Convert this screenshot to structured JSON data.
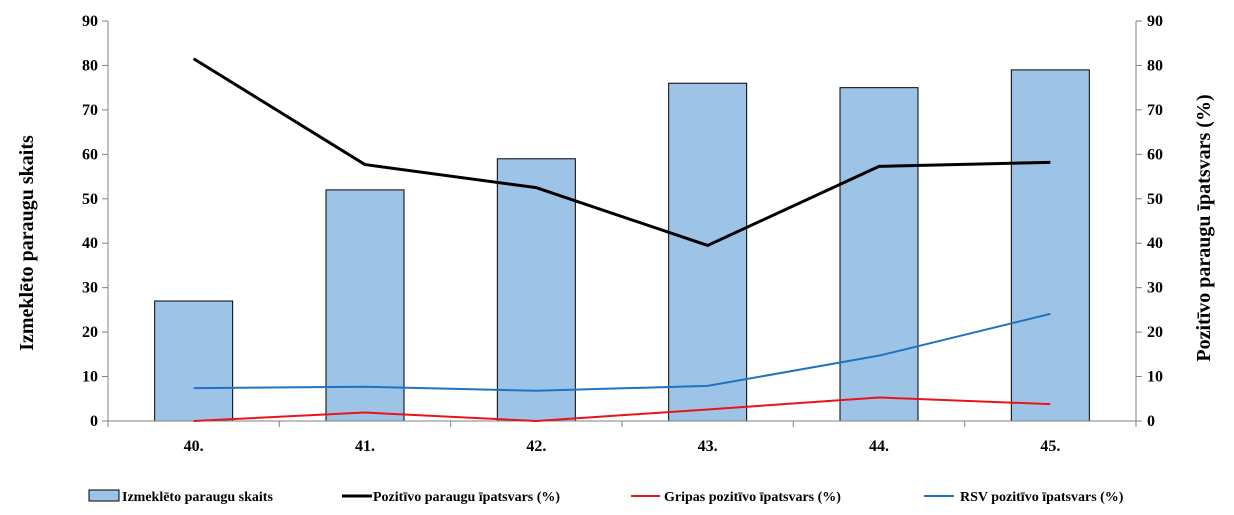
{
  "chart_data": {
    "type": "bar",
    "categories": [
      "40.",
      "41.",
      "42.",
      "43.",
      "44.",
      "45."
    ],
    "bars": {
      "name": "Izmeklēto paraugu skaits",
      "values": [
        27,
        52,
        59,
        76,
        75,
        79
      ],
      "color": "#9dc3e6"
    },
    "lines": [
      {
        "name": "Pozitīvo paraugu īpatsvars (%)",
        "values": [
          81.5,
          57.7,
          52.5,
          39.5,
          57.3,
          58.2
        ],
        "color": "#000000"
      },
      {
        "name": "Gripas pozitīvo  īpatsvars (%)",
        "values": [
          0,
          1.9,
          0,
          2.6,
          5.3,
          3.8
        ],
        "color": "#e8141b"
      },
      {
        "name": "RSV pozitīvo īpatsvars (%)",
        "values": [
          7.4,
          7.7,
          6.8,
          7.9,
          14.7,
          24.1
        ],
        "color": "#1f73c1"
      }
    ],
    "ylabel_left": "Izmeklēto paraugu skaits",
    "ylabel_right": "Pozitīvo paraugu īpatsvars (%)",
    "ylim_left": [
      0,
      90
    ],
    "ylim_right": [
      0,
      90
    ],
    "yticks": [
      "0",
      "10",
      "20",
      "30",
      "40",
      "50",
      "60",
      "70",
      "80",
      "90"
    ],
    "grid": false,
    "legend_position": "bottom"
  }
}
